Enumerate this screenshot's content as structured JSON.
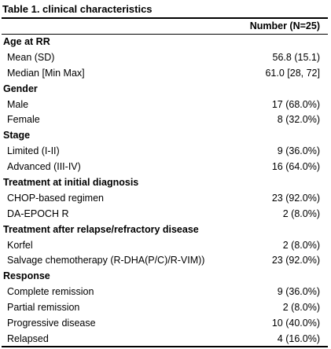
{
  "table": {
    "title": "Table 1. clinical characteristics",
    "column_header": "Number (N=25)",
    "rows": [
      {
        "label": "Age at RR",
        "value": "",
        "section": true
      },
      {
        "label": "Mean (SD)",
        "value": "56.8 (15.1)",
        "section": false
      },
      {
        "label": "Median [Min  Max]",
        "value": "61.0 [28, 72]",
        "section": false
      },
      {
        "label": "Gender",
        "value": "",
        "section": true
      },
      {
        "label": "Male",
        "value": "17 (68.0%)",
        "section": false
      },
      {
        "label": "Female",
        "value": "8 (32.0%)",
        "section": false
      },
      {
        "label": "Stage",
        "value": "",
        "section": true
      },
      {
        "label": "Limited (I-II)",
        "value": "9 (36.0%)",
        "section": false
      },
      {
        "label": "Advanced (III-IV)",
        "value": "16 (64.0%)",
        "section": false
      },
      {
        "label": "Treatment at initial diagnosis",
        "value": "",
        "section": true
      },
      {
        "label": "CHOP-based regimen",
        "value": "23 (92.0%)",
        "section": false
      },
      {
        "label": "DA-EPOCH R",
        "value": "2 (8.0%)",
        "section": false
      },
      {
        "label": "Treatment after relapse/refractory disease",
        "value": "",
        "section": true
      },
      {
        "label": "Korfel",
        "value": "2 (8.0%)",
        "section": false
      },
      {
        "label": "Salvage chemotherapy (R-DHA(P/C)/R-VIM))",
        "value": "23 (92.0%)",
        "section": false
      },
      {
        "label": "Response",
        "value": "",
        "section": true
      },
      {
        "label": "Complete remission",
        "value": "9 (36.0%)",
        "section": false
      },
      {
        "label": "Partial remission",
        "value": "2 (8.0%)",
        "section": false
      },
      {
        "label": "Progressive disease",
        "value": "10 (40.0%)",
        "section": false
      },
      {
        "label": "Relapsed",
        "value": "4 (16.0%)",
        "section": false
      }
    ]
  }
}
